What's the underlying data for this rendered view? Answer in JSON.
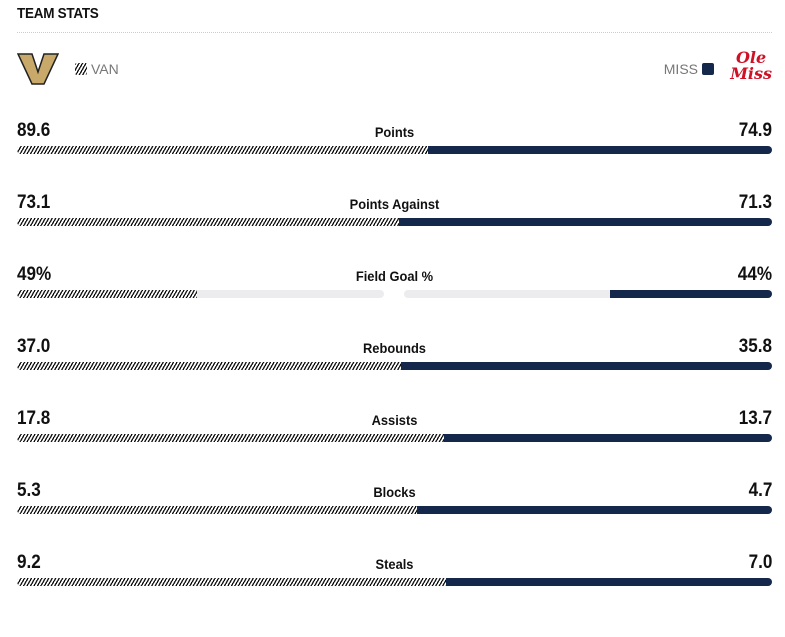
{
  "header": {
    "title": "TEAM STATS"
  },
  "teams": {
    "left": {
      "abbr": "VAN",
      "logo_text": "V",
      "color": "#c8a96a"
    },
    "right": {
      "abbr": "MISS",
      "logo_text": "Ole Miss",
      "color": "#14284b"
    }
  },
  "stats": [
    {
      "label": "Points",
      "left": "89.6",
      "right": "74.9",
      "lv": 89.6,
      "rv": 74.9,
      "mode": "split"
    },
    {
      "label": "Points Against",
      "left": "73.1",
      "right": "71.3",
      "lv": 73.1,
      "rv": 71.3,
      "mode": "split"
    },
    {
      "label": "Field Goal %",
      "left": "49%",
      "right": "44%",
      "lv": 49,
      "rv": 44,
      "mode": "percent"
    },
    {
      "label": "Rebounds",
      "left": "37.0",
      "right": "35.8",
      "lv": 37.0,
      "rv": 35.8,
      "mode": "split"
    },
    {
      "label": "Assists",
      "left": "17.8",
      "right": "13.7",
      "lv": 17.8,
      "rv": 13.7,
      "mode": "split"
    },
    {
      "label": "Blocks",
      "left": "5.3",
      "right": "4.7",
      "lv": 5.3,
      "rv": 4.7,
      "mode": "split"
    },
    {
      "label": "Steals",
      "left": "9.2",
      "right": "7.0",
      "lv": 9.2,
      "rv": 7.0,
      "mode": "split"
    }
  ]
}
